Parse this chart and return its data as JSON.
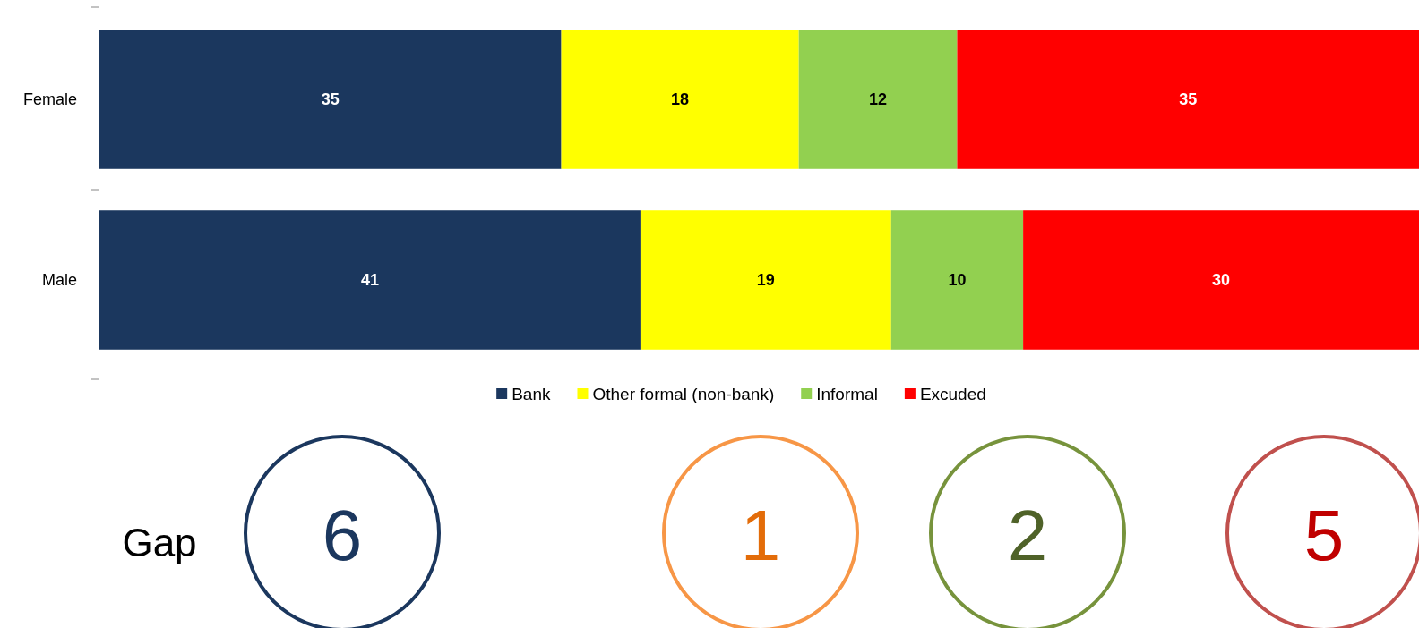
{
  "chart_data": {
    "type": "bar",
    "orientation": "horizontal",
    "stacked": true,
    "categories": [
      "Female",
      "Male"
    ],
    "series": [
      {
        "name": "Bank",
        "color": "#1b375e",
        "values": [
          35,
          41
        ]
      },
      {
        "name": "Other formal (non-bank)",
        "color": "#ffff00",
        "values": [
          18,
          19
        ]
      },
      {
        "name": "Informal",
        "color": "#92d050",
        "values": [
          12,
          10
        ]
      },
      {
        "name": "Excuded",
        "color": "#ff0000",
        "values": [
          35,
          30
        ]
      }
    ],
    "xlim": [
      0,
      100
    ],
    "tick_labels": "y",
    "data_labels": true,
    "legend": "bottom",
    "annotations": [
      "Gap",
      "6",
      "1",
      "2",
      "5"
    ]
  }
}
